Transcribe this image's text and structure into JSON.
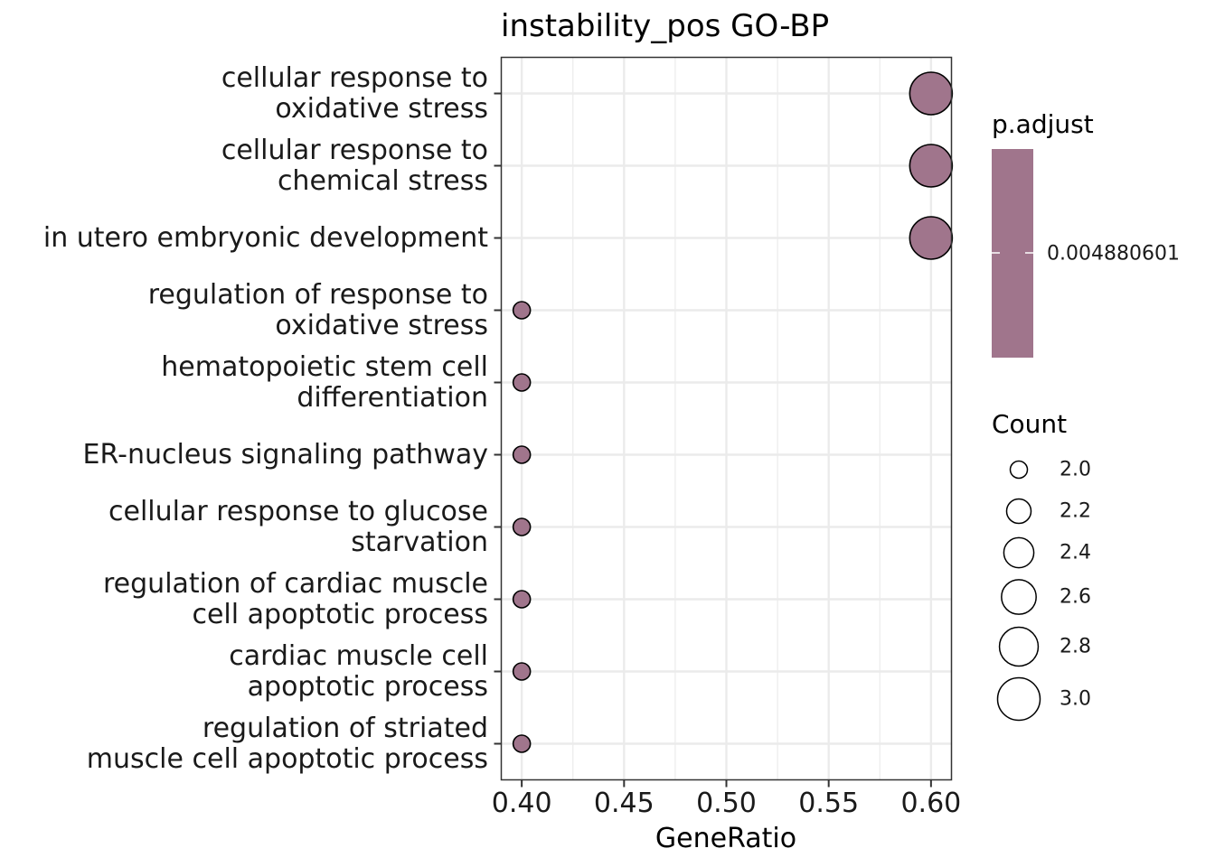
{
  "chart_data": {
    "type": "scatter",
    "title": "instability_pos GO-BP",
    "xlabel": "GeneRatio",
    "ylabel": "",
    "xlim": [
      0.39,
      0.61
    ],
    "x_ticks": [
      "0.40",
      "0.45",
      "0.50",
      "0.55",
      "0.60"
    ],
    "grid": true,
    "categories": [
      [
        "cellular response to",
        "oxidative stress"
      ],
      [
        "cellular response to",
        "chemical stress"
      ],
      [
        "in utero embryonic development"
      ],
      [
        "regulation of response to",
        "oxidative stress"
      ],
      [
        "hematopoietic stem cell",
        "differentiation"
      ],
      [
        "ER-nucleus signaling pathway"
      ],
      [
        "cellular response to glucose",
        "starvation"
      ],
      [
        "regulation of cardiac muscle",
        "cell apoptotic process"
      ],
      [
        "cardiac muscle cell",
        "apoptotic process"
      ],
      [
        "regulation of striated",
        "muscle cell apoptotic process"
      ]
    ],
    "points": [
      {
        "gene_ratio": 0.6,
        "count": 3
      },
      {
        "gene_ratio": 0.6,
        "count": 3
      },
      {
        "gene_ratio": 0.6,
        "count": 3
      },
      {
        "gene_ratio": 0.4,
        "count": 2
      },
      {
        "gene_ratio": 0.4,
        "count": 2
      },
      {
        "gene_ratio": 0.4,
        "count": 2
      },
      {
        "gene_ratio": 0.4,
        "count": 2
      },
      {
        "gene_ratio": 0.4,
        "count": 2
      },
      {
        "gene_ratio": 0.4,
        "count": 2
      },
      {
        "gene_ratio": 0.4,
        "count": 2
      }
    ],
    "color_legend": {
      "title": "p.adjust",
      "label": "0.004880601",
      "color": "#a0758c"
    },
    "size_legend": {
      "title": "Count",
      "entries": [
        "2.0",
        "2.2",
        "2.4",
        "2.6",
        "2.8",
        "3.0"
      ],
      "values": [
        2.0,
        2.2,
        2.4,
        2.6,
        2.8,
        3.0
      ]
    },
    "legend_position": "right",
    "colors": {
      "point_fill": "#a0758c",
      "point_stroke": "#000000",
      "grid": "#ebebeb",
      "panel_border": "#333333"
    }
  }
}
